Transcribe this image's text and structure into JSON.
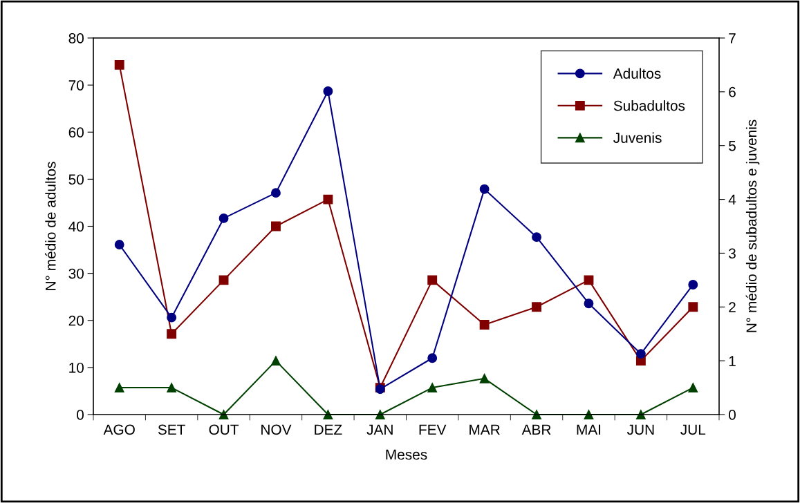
{
  "chart_data": {
    "type": "line",
    "xlabel": "Meses",
    "ylabel": "N° médio de adultos",
    "y2label": "N° médio de subadultos e juvenis",
    "categories": [
      "AGO",
      "SET",
      "OUT",
      "NOV",
      "DEZ",
      "JAN",
      "FEV",
      "MAR",
      "ABR",
      "MAI",
      "JUN",
      "JUL"
    ],
    "series": [
      {
        "name": "Adultos",
        "color": "#000080",
        "marker": "circle",
        "values": [
          36.1,
          20.6,
          41.7,
          47.1,
          68.7,
          5.4,
          12.0,
          47.9,
          37.7,
          23.6,
          12.9,
          27.6
        ]
      },
      {
        "name": "Subadultos",
        "color": "#800000",
        "marker": "square",
        "axis": "y2",
        "values": [
          6.5,
          1.5,
          2.5,
          3.5,
          4.0,
          0.5,
          2.5,
          1.67,
          2.0,
          2.5,
          1.0,
          2.0
        ]
      },
      {
        "name": "Juvenis",
        "color": "#004000",
        "marker": "triangle",
        "axis": "y2",
        "values": [
          0.5,
          0.5,
          0,
          1.0,
          0,
          0,
          0.5,
          0.67,
          0,
          0,
          0,
          0.5
        ]
      }
    ],
    "ylim": [
      0,
      80
    ],
    "yticks": [
      0,
      10,
      20,
      30,
      40,
      50,
      60,
      70,
      80
    ],
    "y2lim": [
      0,
      7
    ],
    "y2ticks": [
      0,
      1,
      2,
      3,
      4,
      5,
      6,
      7
    ],
    "grid": false,
    "legend": "top right",
    "line_style": "solid"
  }
}
